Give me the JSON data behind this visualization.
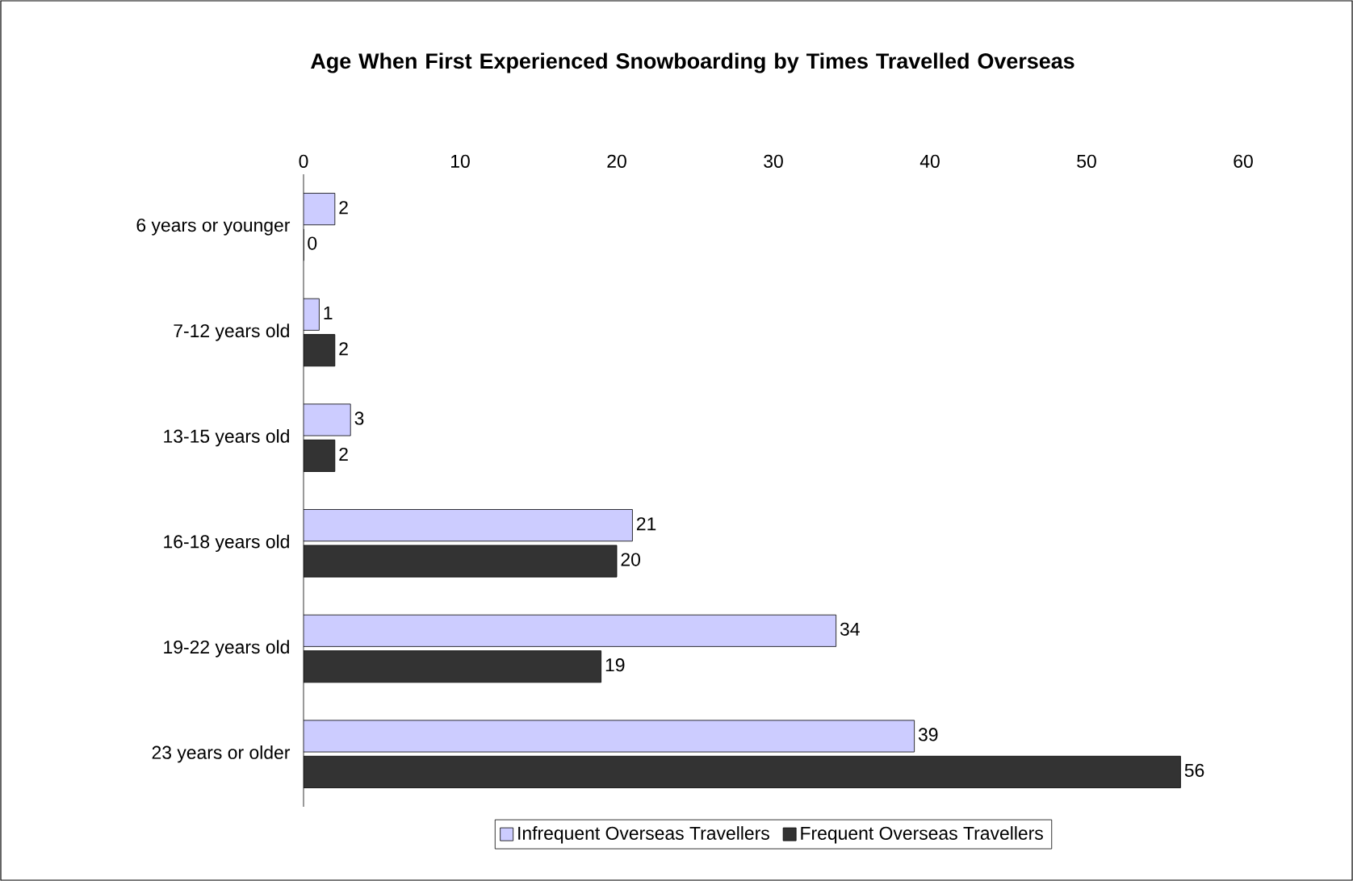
{
  "chart_data": {
    "type": "bar",
    "orientation": "horizontal",
    "title": "Age When First Experienced Snowboarding by Times Travelled Overseas",
    "categories": [
      "6 years or younger",
      "7-12 years old",
      "13-15 years old",
      "16-18 years old",
      "19-22 years old",
      "23 years or older"
    ],
    "series": [
      {
        "name": "Infrequent Overseas Travellers",
        "color": "#ccccff",
        "values": [
          2,
          1,
          3,
          21,
          34,
          39
        ]
      },
      {
        "name": "Frequent Overseas Travellers",
        "color": "#333333",
        "values": [
          0,
          2,
          2,
          20,
          19,
          56
        ]
      }
    ],
    "xlim": [
      0,
      60
    ],
    "xticks": [
      0,
      10,
      20,
      30,
      40,
      50,
      60
    ],
    "data_labels": true,
    "legend": "bottom",
    "grid": false
  }
}
